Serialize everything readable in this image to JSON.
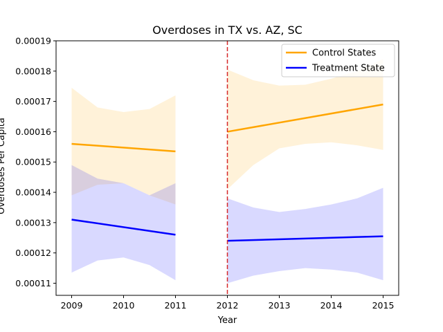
{
  "chart_data": {
    "type": "line",
    "title": "Overdoses in TX vs. AZ, SC",
    "xlabel": "Year",
    "ylabel": "Overdoses Per Capita",
    "xlim": [
      2008.7,
      2015.3
    ],
    "ylim": [
      0.000106,
      0.00019
    ],
    "x_ticks": [
      2009,
      2010,
      2011,
      2012,
      2013,
      2014,
      2015
    ],
    "x_tick_labels": [
      "2009",
      "2010",
      "2011",
      "2012",
      "2013",
      "2014",
      "2015"
    ],
    "y_ticks": [
      0.00011,
      0.00012,
      0.00013,
      0.00014,
      0.00015,
      0.00016,
      0.00017,
      0.00018,
      0.00019
    ],
    "y_tick_labels": [
      "0.00011",
      "0.00012",
      "0.00013",
      "0.00014",
      "0.00015",
      "0.00016",
      "0.00017",
      "0.00018",
      "0.00019"
    ],
    "vline": {
      "x": 2012,
      "color": "#d62728",
      "style": "dashed"
    },
    "legend_position": "top-right",
    "series": [
      {
        "name": "Control States",
        "color": "#ffa500",
        "band_color": "#ffa500",
        "segments": [
          {
            "x": [
              2009,
              2011
            ],
            "y": [
              0.000156,
              0.0001535
            ],
            "band": {
              "x": [
                2009,
                2009.5,
                2010,
                2010.5,
                2011
              ],
              "lower": [
                0.000139,
                0.0001425,
                0.000143,
                0.000139,
                0.000136
              ],
              "upper": [
                0.0001745,
                0.000168,
                0.0001665,
                0.0001675,
                0.000172
              ]
            }
          },
          {
            "x": [
              2012,
              2015
            ],
            "y": [
              0.00016,
              0.000169
            ],
            "band": {
              "x": [
                2012,
                2012.5,
                2013,
                2013.5,
                2014,
                2014.5,
                2015
              ],
              "lower": [
                0.000141,
                0.000149,
                0.0001545,
                0.000156,
                0.0001565,
                0.0001555,
                0.000154
              ],
              "upper": [
                0.0001805,
                0.000177,
                0.0001752,
                0.0001755,
                0.0001775,
                0.00018,
                0.000184
              ]
            }
          }
        ]
      },
      {
        "name": "Treatment State",
        "color": "#0000ff",
        "band_color": "#0000ff",
        "segments": [
          {
            "x": [
              2009,
              2011
            ],
            "y": [
              0.000131,
              0.000126
            ],
            "band": {
              "x": [
                2009,
                2009.5,
                2010,
                2010.5,
                2011
              ],
              "lower": [
                0.0001135,
                0.0001175,
                0.0001185,
                0.000116,
                0.000111
              ],
              "upper": [
                0.000149,
                0.0001445,
                0.000143,
                0.000139,
                0.000143
              ]
            }
          },
          {
            "x": [
              2012,
              2015
            ],
            "y": [
              0.000124,
              0.0001255
            ],
            "band": {
              "x": [
                2012,
                2012.5,
                2013,
                2013.5,
                2014,
                2014.5,
                2015
              ],
              "lower": [
                0.00011,
                0.0001125,
                0.000114,
                0.000115,
                0.0001145,
                0.0001135,
                0.000111
              ],
              "upper": [
                0.000138,
                0.000135,
                0.0001335,
                0.0001345,
                0.000136,
                0.000138,
                0.0001415
              ]
            }
          }
        ]
      }
    ]
  }
}
